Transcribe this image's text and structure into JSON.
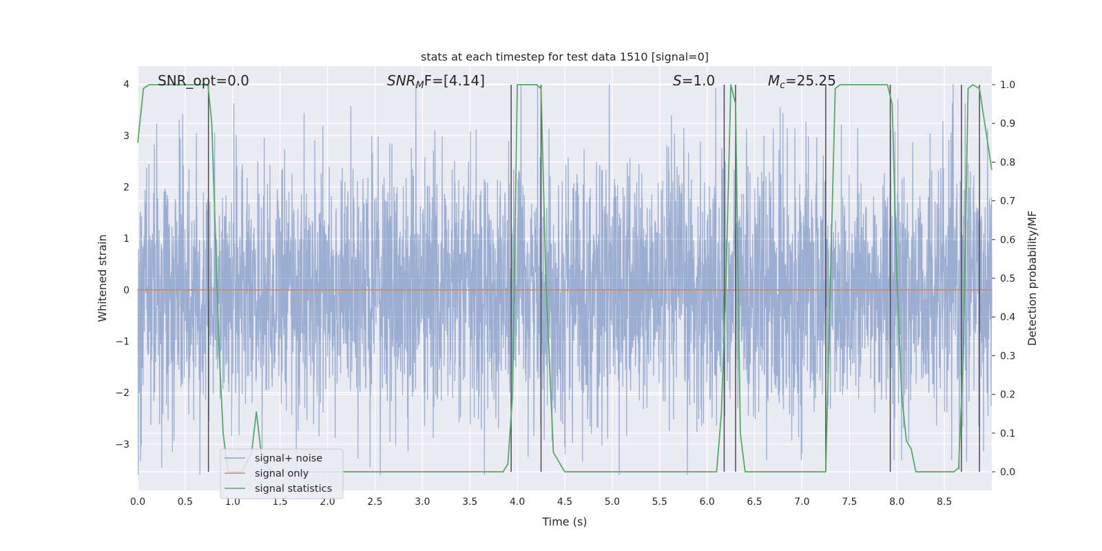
{
  "chart_data": {
    "type": "line",
    "title": "stats at each timestep for test data 1510 [signal=0]",
    "xlabel": "Time (s)",
    "ylabel": "Whitened strain",
    "y2label": "Detection probability/MF",
    "xlim": [
      0.0,
      9.0
    ],
    "ylim": [
      -3.9,
      4.35
    ],
    "y2lim": [
      -0.048,
      1.048
    ],
    "x_ticks": [
      0.0,
      0.5,
      1.0,
      1.5,
      2.0,
      2.5,
      3.0,
      3.5,
      4.0,
      4.5,
      5.0,
      5.5,
      6.0,
      6.5,
      7.0,
      7.5,
      8.0,
      8.5
    ],
    "y_ticks": [
      -3,
      -2,
      -1,
      0,
      1,
      2,
      3,
      4
    ],
    "y_tick_labels": [
      "−3",
      "−2",
      "−1",
      "0",
      "1",
      "2",
      "3",
      "4"
    ],
    "y2_ticks": [
      0.0,
      0.1,
      0.2,
      0.3,
      0.4,
      0.5,
      0.6,
      0.7,
      0.8,
      0.9,
      1.0
    ],
    "grid": true,
    "legend_position": "lower-left",
    "annotations": {
      "snr_opt": "SNR_opt=0.0",
      "snr_mf_symbol": "SNR",
      "snr_mf_sub": "M",
      "snr_mf_rest": "F=[4.14]",
      "s_symbol": "S",
      "s_rest": "=1.0",
      "mc_symbol": "M",
      "mc_sub": "c",
      "mc_rest": "=25.25"
    },
    "series": [
      {
        "name": "signal+ noise",
        "color": "#4c72b0",
        "axis": "left",
        "style": "dense noise trace, approx. Gaussian, spikes up to ~±4",
        "x_range": [
          0.0,
          9.0
        ],
        "envelope": {
          "std": 1.25,
          "max": 4.0,
          "min": -3.6
        }
      },
      {
        "name": "signal only",
        "color": "#dd8452",
        "axis": "left",
        "x": [
          0.0,
          9.0
        ],
        "values": [
          0.0,
          0.0
        ]
      },
      {
        "name": "signal statistics",
        "color": "#55a868",
        "axis": "right",
        "x": [
          0.0,
          0.06,
          0.12,
          0.7,
          0.74,
          0.78,
          0.82,
          0.86,
          0.9,
          0.95,
          1.0,
          1.1,
          1.2,
          1.25,
          1.3,
          1.4,
          3.85,
          3.9,
          3.95,
          4.0,
          4.2,
          4.25,
          4.3,
          4.38,
          4.5,
          6.1,
          6.15,
          6.2,
          6.25,
          6.3,
          6.35,
          6.4,
          7.25,
          7.3,
          7.35,
          7.4,
          7.9,
          7.95,
          8.0,
          8.05,
          8.1,
          8.15,
          8.2,
          8.6,
          8.65,
          8.7,
          8.75,
          8.8,
          8.87,
          9.0
        ],
        "values": [
          0.85,
          0.99,
          1.0,
          1.0,
          1.0,
          0.9,
          0.6,
          0.3,
          0.1,
          0.0,
          0.0,
          0.0,
          0.05,
          0.155,
          0.05,
          0.0,
          0.0,
          0.02,
          0.2,
          1.0,
          1.0,
          0.99,
          0.5,
          0.05,
          0.0,
          0.0,
          0.15,
          0.5,
          1.0,
          0.95,
          0.1,
          0.0,
          0.0,
          0.5,
          0.99,
          1.0,
          1.0,
          0.95,
          0.5,
          0.2,
          0.08,
          0.06,
          0.0,
          0.0,
          0.01,
          0.3,
          0.99,
          1.0,
          0.99,
          0.78
        ]
      }
    ],
    "vertical_markers": {
      "color": "#4a4a4a",
      "ymin": 0.0,
      "ymax": 1.0,
      "x": [
        0.745,
        3.935,
        4.25,
        6.18,
        6.3,
        7.25,
        7.93,
        8.68,
        8.87
      ]
    }
  }
}
